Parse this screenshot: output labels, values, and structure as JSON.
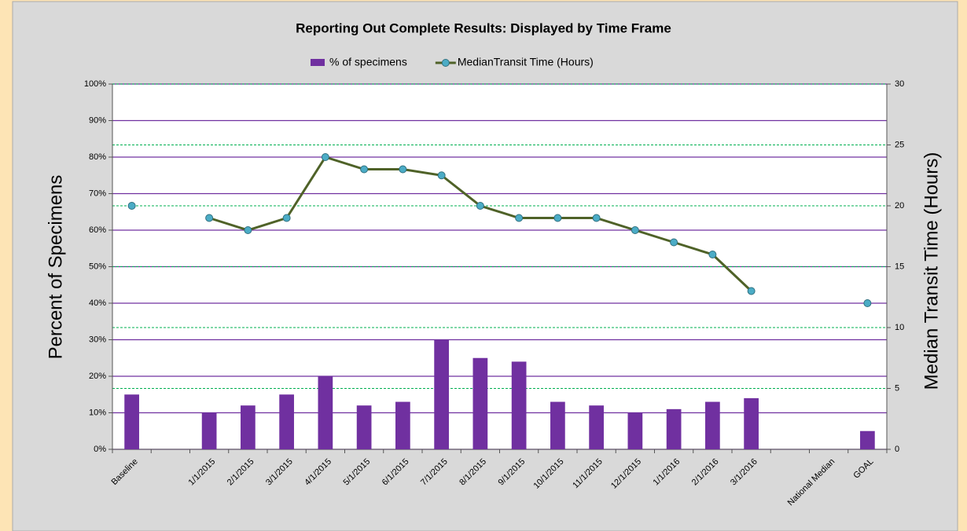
{
  "chart_data": {
    "type": "bar_line",
    "title": "Reporting Out Complete Results:  Displayed by Time Frame",
    "y_label": "Percent of Specimens",
    "y2_label": "Median Transit Time (Hours)",
    "categories": [
      "Baseline",
      null,
      "1/1/2015",
      "2/1/2015",
      "3/1/2015",
      "4/1/2015",
      "5/1/2015",
      "6/1/2015",
      "7/1/2015",
      "8/1/2015",
      "9/1/2015",
      "10/1/2015",
      "11/1/2015",
      "12/1/2015",
      "1/1/2016",
      "2/1/2016",
      "3/1/2016",
      null,
      "National Median",
      "GOAL"
    ],
    "series": [
      {
        "name": "% of specimens",
        "type": "bar",
        "color": "#7030a0",
        "values": [
          15,
          null,
          10,
          12,
          15,
          20,
          12,
          13,
          30,
          25,
          24,
          13,
          12,
          10,
          11,
          13,
          14,
          null,
          null,
          5
        ]
      },
      {
        "name": "MedianTransit Time (Hours)",
        "type": "line",
        "axis": "y2",
        "color": "#4f6228",
        "marker_color": "#4bacc6",
        "values": [
          20,
          null,
          19,
          18,
          19,
          24,
          23,
          23,
          22.5,
          20,
          19,
          19,
          19,
          18,
          17,
          16,
          13,
          null,
          null,
          12
        ]
      }
    ],
    "ylim": [
      0,
      100
    ],
    "yticks": [
      {
        "value": 0,
        "label": "0%"
      },
      {
        "value": 10,
        "label": "10%"
      },
      {
        "value": 20,
        "label": "20%"
      },
      {
        "value": 30,
        "label": "30%"
      },
      {
        "value": 40,
        "label": "40%"
      },
      {
        "value": 50,
        "label": "50%"
      },
      {
        "value": 60,
        "label": "60%"
      },
      {
        "value": 70,
        "label": "70%"
      },
      {
        "value": 80,
        "label": "80%"
      },
      {
        "value": 90,
        "label": "90%"
      },
      {
        "value": 100,
        "label": "100%"
      }
    ],
    "y2lim": [
      0,
      30
    ],
    "y2ticks": [
      0,
      5,
      10,
      15,
      20,
      25,
      30
    ],
    "grid": true,
    "legend": "top"
  }
}
